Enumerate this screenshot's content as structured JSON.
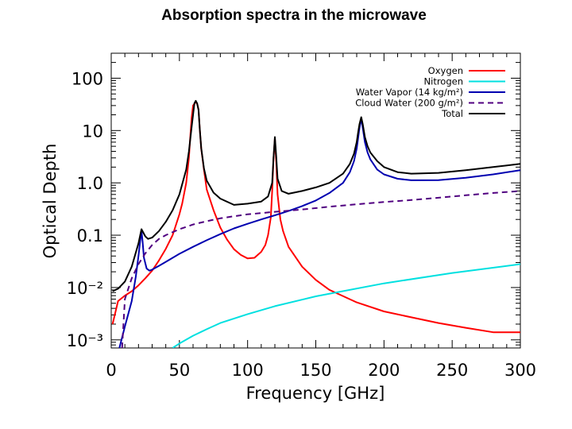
{
  "chart_data": {
    "type": "line",
    "title": "Absorption spectra in the microwave",
    "xlabel": "Frequency [GHz]",
    "ylabel": "Optical Depth",
    "xlim": [
      0,
      300
    ],
    "ylim": [
      0.0007,
      300
    ],
    "yscale": "log",
    "x_ticks": [
      0,
      50,
      100,
      150,
      200,
      250,
      300
    ],
    "x_tick_labels": [
      "0",
      "50",
      "100",
      "150",
      "200",
      "250",
      "300"
    ],
    "y_ticks": [
      0.001,
      0.01,
      0.1,
      1,
      10,
      100
    ],
    "y_tick_labels": [
      "10⁻³",
      "10⁻²",
      "0.1",
      "1.0",
      "10",
      "100"
    ],
    "legend_position": "top-right",
    "series": [
      {
        "name": "Oxygen",
        "color": "#ff0000",
        "dash": "solid",
        "x": [
          1,
          5,
          10,
          15,
          20,
          25,
          30,
          35,
          40,
          45,
          50,
          52,
          55,
          57,
          58,
          59,
          60,
          62,
          63,
          64,
          65,
          66,
          68,
          70,
          75,
          80,
          85,
          90,
          95,
          100,
          105,
          110,
          113,
          115,
          117,
          118,
          119,
          120,
          121,
          122,
          124,
          126,
          130,
          140,
          150,
          160,
          180,
          200,
          220,
          240,
          260,
          280,
          290,
          300
        ],
        "y": [
          0.002,
          0.0055,
          0.007,
          0.0085,
          0.011,
          0.015,
          0.021,
          0.033,
          0.055,
          0.1,
          0.25,
          0.4,
          1.0,
          3.0,
          8.0,
          18,
          30,
          35,
          33,
          25,
          10,
          4.5,
          1.8,
          0.75,
          0.3,
          0.14,
          0.082,
          0.054,
          0.042,
          0.036,
          0.037,
          0.048,
          0.065,
          0.1,
          0.22,
          0.7,
          3.0,
          7.0,
          2.5,
          0.6,
          0.2,
          0.12,
          0.06,
          0.025,
          0.014,
          0.009,
          0.0052,
          0.0035,
          0.0027,
          0.0021,
          0.0017,
          0.0014,
          0.0014,
          0.0014
        ]
      },
      {
        "name": "Nitrogen",
        "color": "#00e0e0",
        "dash": "solid",
        "x": [
          45,
          50,
          60,
          70,
          80,
          100,
          120,
          150,
          200,
          250,
          300
        ],
        "y": [
          0.0007,
          0.00085,
          0.0012,
          0.0016,
          0.0021,
          0.0031,
          0.0044,
          0.0068,
          0.012,
          0.019,
          0.028
        ]
      },
      {
        "name": "Water Vapor (14 kg/m²)",
        "color": "#0000b0",
        "dash": "solid",
        "x": [
          6,
          10,
          15,
          18,
          20,
          21,
          22.2,
          23,
          24,
          26,
          28,
          30,
          35,
          40,
          50,
          60,
          70,
          80,
          90,
          100,
          110,
          120,
          130,
          140,
          150,
          160,
          170,
          175,
          178,
          180,
          181,
          182,
          183.3,
          184.5,
          186,
          188,
          190,
          195,
          200,
          210,
          220,
          240,
          260,
          280,
          300
        ],
        "y": [
          0.0007,
          0.0018,
          0.0055,
          0.016,
          0.04,
          0.07,
          0.12,
          0.075,
          0.037,
          0.023,
          0.021,
          0.022,
          0.026,
          0.031,
          0.044,
          0.06,
          0.08,
          0.105,
          0.135,
          0.165,
          0.2,
          0.24,
          0.29,
          0.36,
          0.46,
          0.64,
          1.0,
          1.6,
          2.6,
          4.5,
          7.0,
          11,
          17,
          11,
          6.0,
          3.8,
          2.8,
          1.8,
          1.45,
          1.2,
          1.12,
          1.13,
          1.25,
          1.45,
          1.75
        ]
      },
      {
        "name": "Cloud Water (200 g/m²)",
        "color": "#500080",
        "dash": "dashed",
        "x": [
          8,
          10,
          15,
          20,
          25,
          30,
          35,
          40,
          50,
          60,
          70,
          80,
          90,
          100,
          120,
          140,
          160,
          180,
          200,
          220,
          240,
          260,
          280,
          300
        ],
        "y": [
          0.0007,
          0.006,
          0.015,
          0.028,
          0.045,
          0.065,
          0.085,
          0.1,
          0.13,
          0.16,
          0.185,
          0.21,
          0.23,
          0.25,
          0.28,
          0.31,
          0.35,
          0.39,
          0.43,
          0.47,
          0.52,
          0.58,
          0.64,
          0.7
        ]
      },
      {
        "name": "Total",
        "color": "#000000",
        "dash": "solid",
        "x": [
          1,
          5,
          10,
          15,
          20,
          22.2,
          25,
          27,
          30,
          35,
          40,
          45,
          50,
          55,
          57,
          59,
          61,
          62,
          63,
          64,
          65,
          66,
          68,
          70,
          75,
          80,
          90,
          100,
          110,
          115,
          118,
          119,
          120,
          121,
          122,
          125,
          130,
          140,
          150,
          160,
          170,
          175,
          178,
          180,
          181,
          182,
          183.3,
          184.5,
          186,
          188,
          190,
          195,
          200,
          210,
          220,
          240,
          260,
          280,
          300
        ],
        "y": [
          0.0085,
          0.0095,
          0.013,
          0.025,
          0.07,
          0.13,
          0.095,
          0.085,
          0.09,
          0.12,
          0.18,
          0.3,
          0.6,
          1.8,
          4.0,
          12,
          33,
          37,
          33,
          25,
          10,
          4.6,
          1.9,
          1.1,
          0.65,
          0.5,
          0.38,
          0.4,
          0.44,
          0.55,
          1.0,
          3.0,
          7.5,
          3.2,
          1.2,
          0.7,
          0.62,
          0.7,
          0.82,
          1.0,
          1.5,
          2.3,
          3.6,
          6.0,
          9.0,
          13,
          18,
          13,
          7.5,
          5.0,
          3.8,
          2.6,
          2.0,
          1.6,
          1.5,
          1.55,
          1.75,
          2.0,
          2.3
        ]
      }
    ]
  }
}
